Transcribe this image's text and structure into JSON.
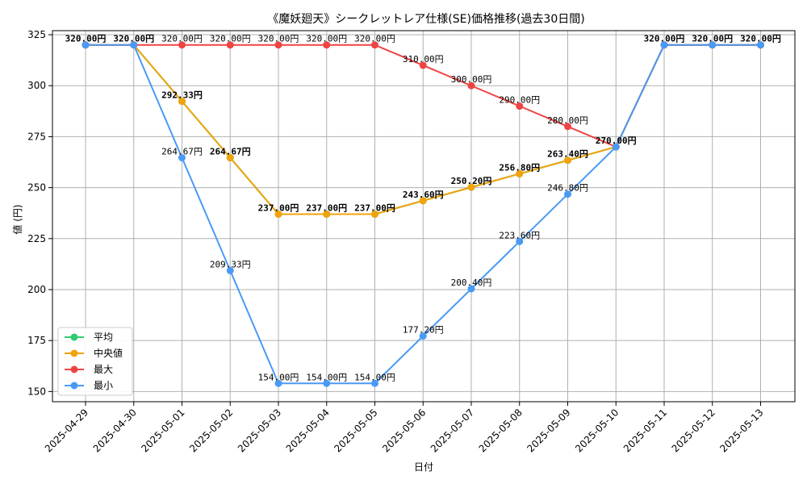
{
  "chart_data": {
    "type": "line",
    "title": "《魔妖廻天》シークレットレア仕様(SE)価格推移(過去30日間)",
    "xlabel": "日付",
    "ylabel": "値 (円)",
    "categories": [
      "2025-04-29",
      "2025-04-30",
      "2025-05-01",
      "2025-05-02",
      "2025-05-03",
      "2025-05-04",
      "2025-05-05",
      "2025-05-06",
      "2025-05-07",
      "2025-05-08",
      "2025-05-09",
      "2025-05-10",
      "2025-05-11",
      "2025-05-12",
      "2025-05-13"
    ],
    "ylim": [
      145,
      327
    ],
    "yticks": [
      150,
      175,
      200,
      225,
      250,
      275,
      300,
      325
    ],
    "grid": true,
    "legend_position": "lower-left",
    "series": [
      {
        "name": "平均",
        "color": "#2ecc71",
        "values": [
          320,
          320,
          292.33,
          264.67,
          237,
          237,
          237,
          243.6,
          250.2,
          256.8,
          263.4,
          270,
          320,
          320,
          320
        ]
      },
      {
        "name": "中央値",
        "color": "#f0a30a",
        "values": [
          320,
          320,
          292.33,
          264.67,
          237,
          237,
          237,
          243.6,
          250.2,
          256.8,
          263.4,
          270,
          320,
          320,
          320
        ]
      },
      {
        "name": "最大",
        "color": "#ef4444",
        "values": [
          320,
          320,
          320,
          320,
          320,
          320,
          320,
          310,
          300,
          290,
          280,
          270,
          320,
          320,
          320
        ]
      },
      {
        "name": "最小",
        "color": "#4a9af5",
        "values": [
          320,
          320,
          264.67,
          209.33,
          154,
          154,
          154,
          177.2,
          200.4,
          223.6,
          246.8,
          270,
          320,
          320,
          320
        ]
      }
    ],
    "data_labels": [
      {
        "x": "2025-04-29",
        "text": "320.00円",
        "bold": true,
        "y": 320
      },
      {
        "x": "2025-04-30",
        "text": "320.00円",
        "bold": true,
        "y": 320
      },
      {
        "x": "2025-05-11",
        "text": "320.00円",
        "bold": true,
        "y": 320
      },
      {
        "x": "2025-05-12",
        "text": "320.00円",
        "bold": true,
        "y": 320
      },
      {
        "x": "2025-05-13",
        "text": "320.00円",
        "bold": true,
        "y": 320
      },
      {
        "x": "2025-05-10",
        "text": "270.00円",
        "bold": true,
        "y": 270
      },
      {
        "x": "2025-05-01",
        "text": "320.00円",
        "bold": false,
        "y": 320
      },
      {
        "x": "2025-05-02",
        "text": "320.00円",
        "bold": false,
        "y": 320
      },
      {
        "x": "2025-05-03",
        "text": "320.00円",
        "bold": false,
        "y": 320
      },
      {
        "x": "2025-05-04",
        "text": "320.00円",
        "bold": false,
        "y": 320
      },
      {
        "x": "2025-05-05",
        "text": "320.00円",
        "bold": false,
        "y": 320
      },
      {
        "x": "2025-05-06",
        "text": "310.00円",
        "bold": false,
        "y": 310
      },
      {
        "x": "2025-05-07",
        "text": "300.00円",
        "bold": false,
        "y": 300
      },
      {
        "x": "2025-05-08",
        "text": "290.00円",
        "bold": false,
        "y": 290
      },
      {
        "x": "2025-05-09",
        "text": "280.00円",
        "bold": false,
        "y": 280
      },
      {
        "x": "2025-05-01",
        "text": "292.33円",
        "bold": true,
        "y": 292.33
      },
      {
        "x": "2025-05-02",
        "text": "264.67円",
        "bold": true,
        "y": 264.67
      },
      {
        "x": "2025-05-03",
        "text": "237.00円",
        "bold": true,
        "y": 237
      },
      {
        "x": "2025-05-04",
        "text": "237.00円",
        "bold": true,
        "y": 237
      },
      {
        "x": "2025-05-05",
        "text": "237.00円",
        "bold": true,
        "y": 237
      },
      {
        "x": "2025-05-06",
        "text": "243.60円",
        "bold": true,
        "y": 243.6
      },
      {
        "x": "2025-05-07",
        "text": "250.20円",
        "bold": true,
        "y": 250.2
      },
      {
        "x": "2025-05-08",
        "text": "256.80円",
        "bold": true,
        "y": 256.8
      },
      {
        "x": "2025-05-09",
        "text": "263.40円",
        "bold": true,
        "y": 263.4
      },
      {
        "x": "2025-05-01",
        "text": "264.67円",
        "bold": false,
        "y": 264.67
      },
      {
        "x": "2025-05-02",
        "text": "209.33円",
        "bold": false,
        "y": 209.33
      },
      {
        "x": "2025-05-03",
        "text": "154.00円",
        "bold": false,
        "y": 154
      },
      {
        "x": "2025-05-04",
        "text": "154.00円",
        "bold": false,
        "y": 154
      },
      {
        "x": "2025-05-05",
        "text": "154.00円",
        "bold": false,
        "y": 154
      },
      {
        "x": "2025-05-06",
        "text": "177.20円",
        "bold": false,
        "y": 177.2
      },
      {
        "x": "2025-05-07",
        "text": "200.40円",
        "bold": false,
        "y": 200.4
      },
      {
        "x": "2025-05-08",
        "text": "223.60円",
        "bold": false,
        "y": 223.6
      },
      {
        "x": "2025-05-09",
        "text": "246.80円",
        "bold": false,
        "y": 246.8
      }
    ]
  }
}
